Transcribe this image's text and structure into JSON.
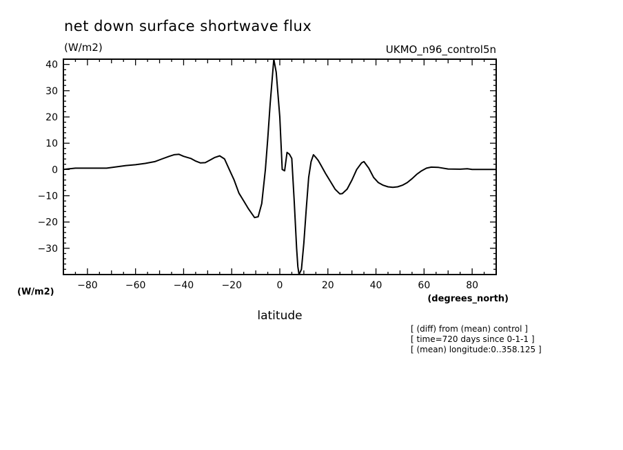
{
  "chart_data": {
    "type": "line",
    "title": "net down surface shortwave flux",
    "units_label": "(W/m2)",
    "model_label": "UKMO_n96_control5n",
    "ylabel": "(W/m2)",
    "xunit_label": "(degrees_north)",
    "xlabel": "latitude",
    "notes": [
      "[ (diff) from (mean) control ]",
      "[ time=720 days since 0-1-1 ]",
      "[ (mean) longitude:0..358.125 ]"
    ],
    "xlim": [
      -90,
      90
    ],
    "ylim": [
      -40,
      42
    ],
    "x_ticks": [
      -80,
      -60,
      -40,
      -20,
      0,
      20,
      40,
      60,
      80
    ],
    "x_tick_labels": [
      "−80",
      "−60",
      "−40",
      "−20",
      "0",
      "20",
      "40",
      "60",
      "80"
    ],
    "y_ticks": [
      40,
      30,
      20,
      10,
      0,
      -10,
      -20,
      -30
    ],
    "y_tick_labels": [
      "40",
      "30",
      "20",
      "10",
      "0",
      "−10",
      "−20",
      "−30"
    ],
    "grid": false,
    "series": [
      {
        "x": [
          -90,
          -85,
          -80,
          -75,
          -72,
          -68,
          -64,
          -60,
          -56,
          -52,
          -49,
          -46,
          -44,
          -42,
          -40,
          -37,
          -35,
          -33,
          -31,
          -29,
          -27,
          -25,
          -23,
          -21,
          -19,
          -17,
          -15,
          -13,
          -11.5,
          -10.5,
          -9,
          -7.5,
          -6,
          -5,
          -4,
          -2.5,
          -1.5,
          0,
          1,
          2,
          3,
          4,
          5,
          6,
          7,
          7.5,
          8,
          9,
          10,
          11,
          12,
          13,
          14,
          15,
          16,
          17,
          19,
          21,
          23,
          25,
          26,
          28,
          30,
          32,
          34,
          35,
          37,
          39,
          41,
          43,
          45,
          47,
          49,
          51,
          53,
          55,
          57,
          59,
          61,
          63,
          66,
          70,
          75,
          78,
          80,
          84,
          90
        ],
        "y": [
          0,
          0.5,
          0.5,
          0.5,
          0.5,
          1,
          1.5,
          1.8,
          2.3,
          3,
          4,
          5,
          5.6,
          5.8,
          5,
          4.2,
          3.2,
          2.5,
          2.6,
          3.6,
          4.6,
          5.2,
          4,
          0,
          -4,
          -9,
          -12,
          -15,
          -17,
          -18.3,
          -18,
          -13,
          0,
          12,
          25,
          42,
          37,
          20,
          0,
          -0.5,
          6.5,
          5.8,
          4.2,
          -12,
          -30,
          -37,
          -40,
          -38,
          -28,
          -15,
          -3,
          3,
          5.6,
          4.6,
          3.4,
          1.8,
          -1.5,
          -4.5,
          -7.5,
          -9.3,
          -9.2,
          -7.5,
          -4,
          0,
          2.5,
          3,
          0.5,
          -3,
          -5,
          -6,
          -6.6,
          -6.8,
          -6.6,
          -6,
          -5,
          -3.5,
          -1.8,
          -0.5,
          0.5,
          0.9,
          0.8,
          0.2,
          0.1,
          0.3,
          0,
          0,
          0
        ]
      }
    ]
  }
}
